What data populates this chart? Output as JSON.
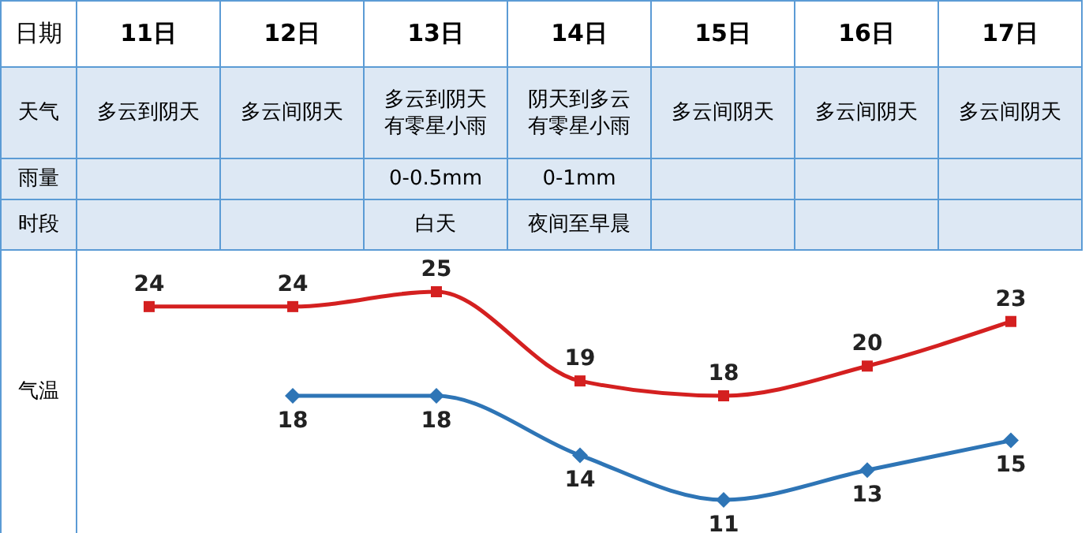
{
  "chart_data": {
    "type": "line",
    "xlabel": "日期",
    "ylabel": "气温",
    "categories": [
      "11日",
      "12日",
      "13日",
      "14日",
      "15日",
      "16日",
      "17日"
    ],
    "series": [
      {
        "color": "#d42020",
        "marker": "square",
        "values": [
          24,
          24,
          25,
          19,
          18,
          20,
          23
        ]
      },
      {
        "color": "#2e75b6",
        "marker": "diamond",
        "values": [
          null,
          18,
          18,
          14,
          11,
          13,
          15
        ]
      }
    ],
    "data_labels": true,
    "annotations": [
      "天气",
      "多云到阴天",
      "多云间阴天",
      "多云到阴天有零星小雨",
      "阴天到多云有零星小雨",
      "多云间阴天",
      "多云间阴天",
      "多云间阴天",
      "雨量",
      "0-0.5mm",
      "0-1mm",
      "时段",
      "白天",
      "夜间至早晨"
    ]
  }
}
